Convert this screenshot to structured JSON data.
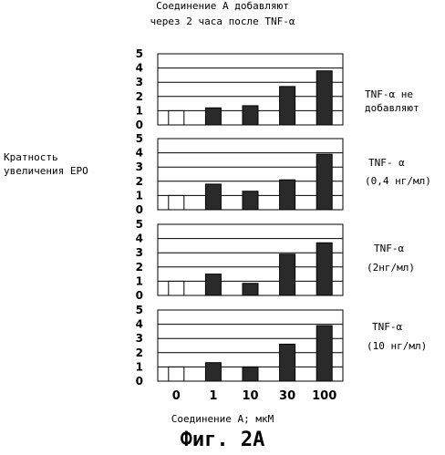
{
  "chart_data": {
    "type": "bar",
    "title": "Соединение А добавляют",
    "subtitle": "через 2 часа после TNF-α",
    "ylabel_lines": [
      "Кратность",
      "увеличения EPO"
    ],
    "xlabel": "Соединение А; мкМ",
    "categories": [
      "0",
      "1",
      "10",
      "30",
      "100"
    ],
    "ylim": [
      0,
      5
    ],
    "yticks": [
      "0",
      "1",
      "2",
      "3",
      "4",
      "5"
    ],
    "grid": true,
    "figure_caption": "Фиг. 2А",
    "panels": [
      {
        "condition_lines": [
          "TNF-α не",
          "добавляют"
        ],
        "values": [
          1.0,
          1.2,
          1.35,
          2.7,
          3.8
        ]
      },
      {
        "condition_lines": [
          "TNF- α",
          "(0,4 нг/мл)"
        ],
        "values": [
          1.0,
          1.8,
          1.3,
          2.1,
          3.9
        ]
      },
      {
        "condition_lines": [
          "TNF-α",
          "(2нг/мл)"
        ],
        "values": [
          1.0,
          1.5,
          0.85,
          2.9,
          3.7
        ]
      },
      {
        "condition_lines": [
          "TNF-α",
          "(10 нг/мл)"
        ],
        "values": [
          1.0,
          1.3,
          1.0,
          2.6,
          3.9
        ]
      }
    ],
    "colors": {
      "control_bar": "#ffffff",
      "treated_bar": "#2a2a2a",
      "grid": "#000000"
    }
  }
}
